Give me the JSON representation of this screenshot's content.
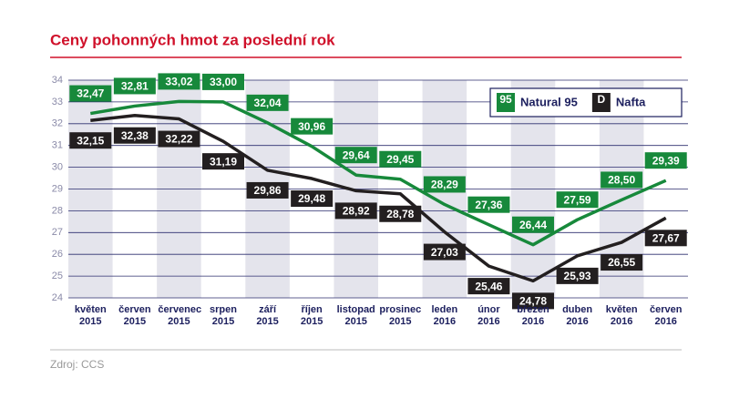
{
  "chart_data": {
    "type": "line",
    "title": "Ceny pohonných hmot za poslední rok",
    "source": "Zdroj: CCS",
    "categories": [
      "květen 2015",
      "červen 2015",
      "červenec 2015",
      "srpen 2015",
      "září 2015",
      "říjen 2015",
      "listopad 2015",
      "prosinec 2015",
      "leden 2016",
      "únor 2016",
      "březen 2016",
      "duben 2016",
      "květen 2016",
      "červen 2016"
    ],
    "series": [
      {
        "name": "Natural 95",
        "icon": "95",
        "color": "#17893b",
        "values": [
          32.47,
          32.81,
          33.02,
          33.0,
          32.04,
          30.96,
          29.64,
          29.45,
          28.29,
          27.36,
          26.44,
          27.59,
          28.5,
          29.39
        ],
        "value_labels": [
          "32,47",
          "32,81",
          "33,02",
          "33,00",
          "32,04",
          "30,96",
          "29,64",
          "29,45",
          "28,29",
          "27,36",
          "26,44",
          "27,59",
          "28,50",
          "29,39"
        ]
      },
      {
        "name": "Nafta",
        "icon": "D",
        "color": "#231f20",
        "values": [
          32.15,
          32.38,
          32.22,
          31.19,
          29.86,
          29.48,
          28.92,
          28.78,
          27.03,
          25.46,
          24.78,
          25.93,
          26.55,
          27.67
        ],
        "value_labels": [
          "32,15",
          "32,38",
          "32,22",
          "31,19",
          "29,86",
          "29,48",
          "28,92",
          "28,78",
          "27,03",
          "25,46",
          "24,78",
          "25,93",
          "26,55",
          "27,67"
        ]
      }
    ],
    "ylim": [
      24,
      34
    ],
    "yticks": [
      24,
      25,
      26,
      27,
      28,
      29,
      30,
      31,
      32,
      33,
      34
    ],
    "grid": true,
    "legend": "top-right"
  }
}
